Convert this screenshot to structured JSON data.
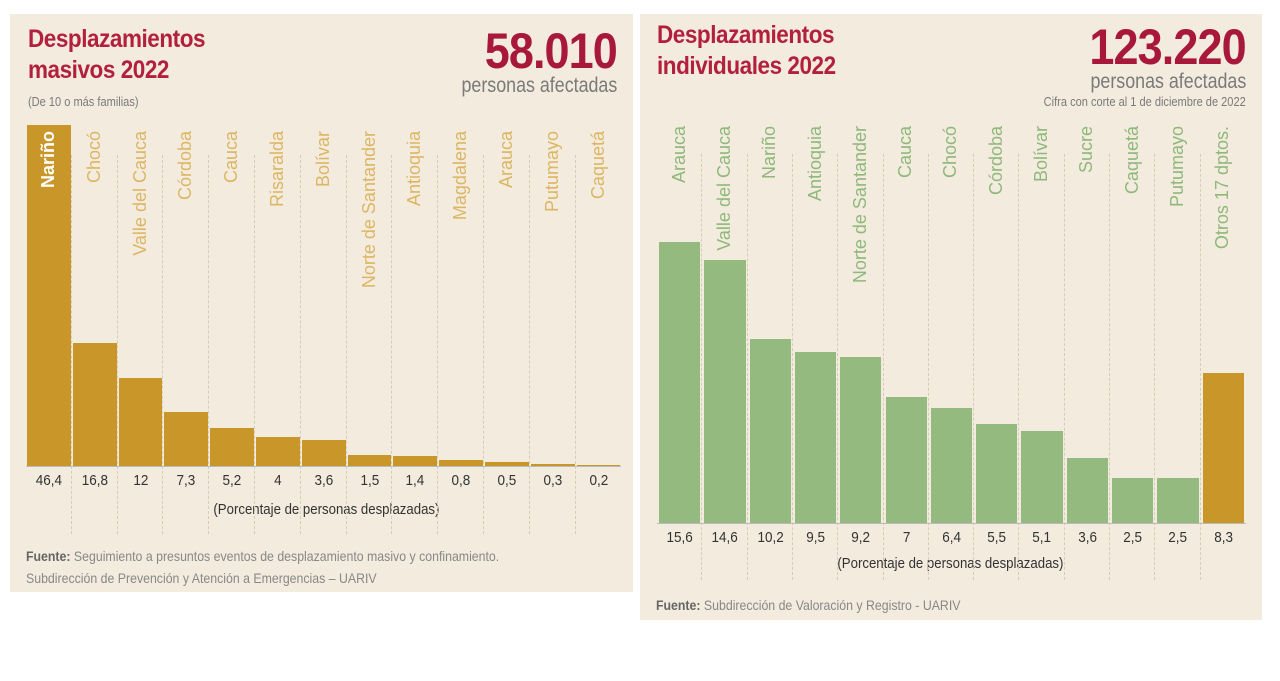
{
  "chart_data": [
    {
      "type": "bar",
      "title": "Desplazamientos masivos 2022",
      "subtitle": "(De 10 o más familias)",
      "headline": {
        "value": "58.010",
        "label": "personas afectadas"
      },
      "xlabel": "(Porcentaje de personas desplazadas)",
      "categories": [
        "Nariño",
        "Chocó",
        "Valle del Cauca",
        "Córdoba",
        "Cauca",
        "Risaralda",
        "Bolívar",
        "Norte de Santander",
        "Antioquia",
        "Magdalena",
        "Arauca",
        "Putumayo",
        "Caquetá"
      ],
      "values": [
        46.4,
        16.8,
        12,
        7.3,
        5.2,
        4,
        3.6,
        1.5,
        1.4,
        0.8,
        0.5,
        0.3,
        0.2
      ],
      "value_labels": [
        "46,4",
        "16,8",
        "12",
        "7,3",
        "5,2",
        "4",
        "3,6",
        "1,5",
        "1,4",
        "0,8",
        "0,5",
        "0,3",
        "0,2"
      ],
      "ylim": [
        0,
        46.4
      ],
      "bar_color": "#c9962a",
      "label_color": "#dcb662",
      "source_prefix": "Fuente:",
      "source": [
        "Seguimiento a presuntos eventos de desplazamiento masivo y confinamiento.",
        "Subdirección de Prevención y Atención a Emergencias – UARIV"
      ]
    },
    {
      "type": "bar",
      "title": "Desplazamientos individuales 2022",
      "headline": {
        "value": "123.220",
        "label": "personas afectadas",
        "note": "Cifra con corte al 1 de diciembre de 2022"
      },
      "xlabel": "(Porcentaje de personas desplazadas)",
      "categories": [
        "Arauca",
        "Valle del Cauca",
        "Nariño",
        "Antioquia",
        "Norte de Santander",
        "Cauca",
        "Chocó",
        "Córdoba",
        "Bolívar",
        "Sucre",
        "Caquetá",
        "Putumayo",
        "Otros 17 dptos."
      ],
      "values": [
        15.6,
        14.6,
        10.2,
        9.5,
        9.2,
        7,
        6.4,
        5.5,
        5.1,
        3.6,
        2.5,
        2.5,
        8.3
      ],
      "value_labels": [
        "15,6",
        "14,6",
        "10,2",
        "9,5",
        "9,2",
        "7",
        "6,4",
        "5,5",
        "5,1",
        "3,6",
        "2,5",
        "2,5",
        "8,3"
      ],
      "ylim": [
        0,
        15.6
      ],
      "bar_color": "#95ba7f",
      "highlight_color": "#c9962a",
      "label_color": "#8fb87b",
      "source_prefix": "Fuente:",
      "source": [
        "Subdirección de Valoración y Registro - UARIV"
      ]
    }
  ]
}
